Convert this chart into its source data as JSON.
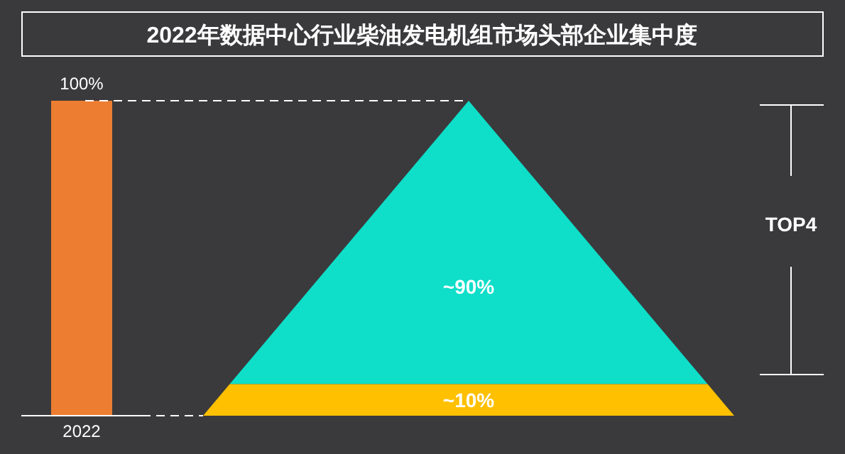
{
  "chart_data": [
    {
      "type": "bar",
      "title": "2022年数据中心行业柴油发电机组市场头部企业集中度",
      "categories": [
        "2022"
      ],
      "values": [
        100
      ],
      "value_labels": [
        "100%"
      ],
      "color": "#ed7d31"
    },
    {
      "type": "other",
      "values": [
        90,
        10
      ],
      "value_labels": [
        "~90%",
        "~10%"
      ],
      "colors": [
        "#0fdec9",
        "#ffc000"
      ],
      "annotations": [
        "TOP4"
      ]
    }
  ]
}
